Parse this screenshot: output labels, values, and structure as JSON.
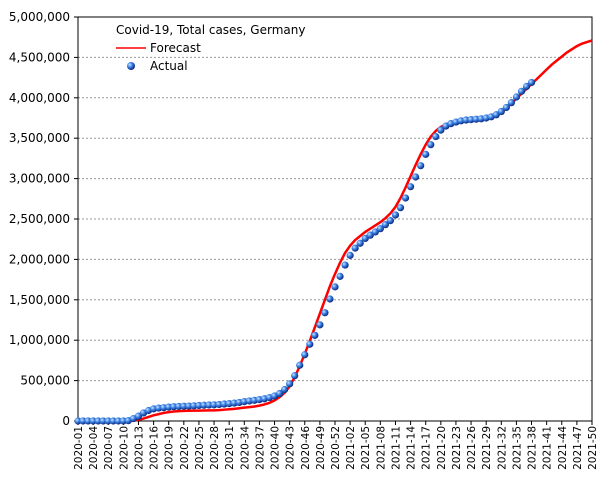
{
  "chart_data": {
    "type": "line",
    "title": "Covid-19, Total cases, Germany",
    "categories": [
      "2020-01",
      null,
      null,
      "2020-04",
      null,
      null,
      "2020-07",
      null,
      null,
      "2020-10",
      null,
      null,
      "2020-13",
      null,
      null,
      "2020-16",
      null,
      null,
      "2020-19",
      null,
      null,
      "2020-22",
      null,
      null,
      "2020-25",
      null,
      null,
      "2020-28",
      null,
      null,
      "2020-31",
      null,
      null,
      "2020-34",
      null,
      null,
      "2020-37",
      null,
      null,
      "2020-40",
      null,
      null,
      "2020-43",
      null,
      null,
      "2020-46",
      null,
      null,
      "2020-49",
      null,
      null,
      "2020-52",
      null,
      null,
      "2021-02",
      null,
      null,
      "2021-05",
      null,
      null,
      "2021-08",
      null,
      null,
      "2021-11",
      null,
      null,
      "2021-14",
      null,
      null,
      "2021-17",
      null,
      null,
      "2021-20",
      null,
      null,
      "2021-23",
      null,
      null,
      "2021-26",
      null,
      null,
      "2021-29",
      null,
      null,
      "2021-32",
      null,
      null,
      "2021-35",
      null,
      null,
      "2021-38",
      null,
      null,
      "2021-41",
      null,
      null,
      "2021-44",
      null,
      null,
      "2021-47",
      null,
      null,
      "2021-50"
    ],
    "series": [
      {
        "name": "Forecast",
        "color": "#ff0000",
        "mode": "line",
        "values": [
          0,
          0,
          0,
          0,
          0,
          0,
          0,
          0,
          0,
          0,
          0,
          5000,
          15000,
          30000,
          50000,
          70000,
          85000,
          100000,
          110000,
          118000,
          122000,
          125000,
          127000,
          128000,
          129000,
          130000,
          131000,
          132000,
          135000,
          140000,
          145000,
          150000,
          158000,
          165000,
          172000,
          180000,
          190000,
          205000,
          225000,
          255000,
          295000,
          350000,
          430000,
          540000,
          680000,
          830000,
          990000,
          1160000,
          1330000,
          1500000,
          1670000,
          1820000,
          1960000,
          2080000,
          2170000,
          2240000,
          2290000,
          2340000,
          2380000,
          2420000,
          2460000,
          2510000,
          2570000,
          2650000,
          2760000,
          2890000,
          3030000,
          3170000,
          3300000,
          3420000,
          3520000,
          3590000,
          3640000,
          3670000,
          3690000,
          3700000,
          3705000,
          3710000,
          3715000,
          3720000,
          3730000,
          3740000,
          3755000,
          3780000,
          3820000,
          3870000,
          3930000,
          3990000,
          4050000,
          4110000,
          4170000,
          4230000,
          4290000,
          4350000,
          4410000,
          4460000,
          4510000,
          4560000,
          4600000,
          4640000,
          4670000,
          4690000,
          4710000
        ]
      },
      {
        "name": "Actual",
        "color": "#1f5fd0",
        "mode": "markers",
        "values": [
          0,
          0,
          0,
          0,
          0,
          0,
          0,
          0,
          0,
          1000,
          5000,
          30000,
          60000,
          100000,
          130000,
          150000,
          160000,
          165000,
          172000,
          177000,
          180000,
          183000,
          185000,
          188000,
          192000,
          195000,
          198000,
          200000,
          204000,
          210000,
          215000,
          222000,
          230000,
          240000,
          248000,
          256000,
          265000,
          275000,
          290000,
          310000,
          340000,
          390000,
          460000,
          560000,
          690000,
          820000,
          950000,
          1060000,
          1190000,
          1340000,
          1510000,
          1660000,
          1790000,
          1930000,
          2050000,
          2140000,
          2200000,
          2260000,
          2300000,
          2340000,
          2380000,
          2430000,
          2480000,
          2550000,
          2640000,
          2760000,
          2900000,
          3020000,
          3160000,
          3300000,
          3420000,
          3520000,
          3600000,
          3650000,
          3680000,
          3700000,
          3715000,
          3725000,
          3730000,
          3735000,
          3740000,
          3750000,
          3765000,
          3790000,
          3830000,
          3880000,
          3940000,
          4010000,
          4080000,
          4140000,
          4190000,
          null,
          null,
          null,
          null,
          null,
          null,
          null,
          null,
          null,
          null,
          null,
          null
        ]
      }
    ],
    "ylim": [
      0,
      5000000
    ],
    "yticks": [
      0,
      {
        "value": 500000,
        "label": "500,000"
      },
      {
        "value": 1000000,
        "label": "1,000,000"
      },
      {
        "value": 1500000,
        "label": "1,500,000"
      },
      {
        "value": 2000000,
        "label": "2,000,000"
      },
      {
        "value": 2500000,
        "label": "2,500,000"
      },
      {
        "value": 3000000,
        "label": "3,000,000"
      },
      {
        "value": 3500000,
        "label": "3,500,000"
      },
      {
        "value": 4000000,
        "label": "4,000,000"
      },
      {
        "value": 4500000,
        "label": "4,500,000"
      },
      {
        "value": 5000000,
        "label": "5,000,000"
      }
    ],
    "grid": true
  }
}
